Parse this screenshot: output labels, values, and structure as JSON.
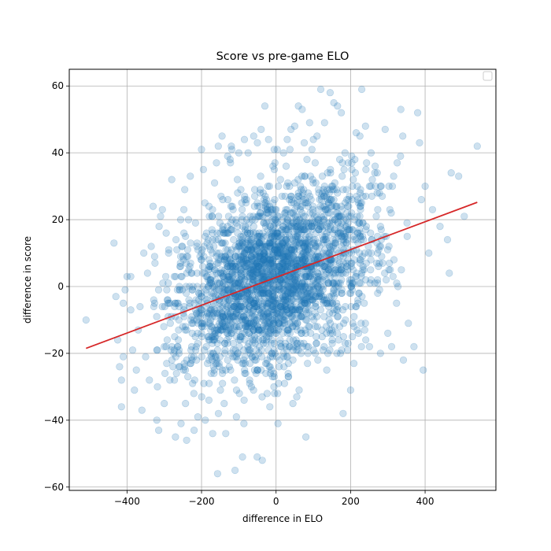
{
  "chart_data": {
    "type": "scatter",
    "title": "Score vs pre-game ELO",
    "xlabel": "difference in ELO",
    "ylabel": "difference in score",
    "xlim": [
      -555,
      590
    ],
    "ylim": [
      -61,
      65
    ],
    "xticks": [
      -400,
      -200,
      0,
      200,
      400
    ],
    "yticks": [
      -60,
      -40,
      -20,
      0,
      20,
      40,
      60
    ],
    "xtick_labels": [
      "−400",
      "−200",
      "0",
      "200",
      "400"
    ],
    "ytick_labels": [
      "−60",
      "−40",
      "−20",
      "0",
      "20",
      "40",
      "60"
    ],
    "grid": true,
    "legend": "upper-right (empty)",
    "colors": {
      "points": "#1f77b4",
      "fit_line": "#d62728"
    },
    "point_opacity": 0.22,
    "fit_line": {
      "x": [
        -510,
        540
      ],
      "y": [
        -18.5,
        25.2
      ]
    },
    "series": [
      {
        "points": [
          [
            -510,
            -10
          ],
          [
            -435,
            13
          ],
          [
            -430,
            -3
          ],
          [
            -425,
            -16
          ],
          [
            -420,
            -24
          ],
          [
            -415,
            -28
          ],
          [
            -415,
            -36
          ],
          [
            -410,
            -21
          ],
          [
            -410,
            -5
          ],
          [
            -405,
            -1
          ],
          [
            -400,
            3
          ],
          [
            -390,
            3
          ],
          [
            -390,
            -7
          ],
          [
            -385,
            -19
          ],
          [
            -380,
            -31
          ],
          [
            -375,
            -25
          ],
          [
            -370,
            -13
          ],
          [
            -365,
            -6
          ],
          [
            -360,
            -37
          ],
          [
            -355,
            10
          ],
          [
            -350,
            -21
          ],
          [
            -345,
            4
          ],
          [
            -340,
            -28
          ],
          [
            -335,
            12
          ],
          [
            -330,
            24
          ],
          [
            -325,
            7
          ],
          [
            -320,
            -40
          ],
          [
            -315,
            -43
          ],
          [
            -310,
            21
          ],
          [
            -305,
            23
          ],
          [
            -300,
            -35
          ],
          [
            -295,
            16
          ],
          [
            -285,
            -28
          ],
          [
            -280,
            32
          ],
          [
            -270,
            -45
          ],
          [
            -255,
            -41
          ],
          [
            -245,
            29
          ],
          [
            -240,
            -46
          ],
          [
            -235,
            20
          ],
          [
            -230,
            33
          ],
          [
            -220,
            -43
          ],
          [
            -210,
            -39
          ],
          [
            -200,
            41
          ],
          [
            -195,
            35
          ],
          [
            -190,
            -40
          ],
          [
            -180,
            24
          ],
          [
            -170,
            -44
          ],
          [
            -165,
            31
          ],
          [
            -160,
            37
          ],
          [
            -155,
            42
          ],
          [
            -145,
            45
          ],
          [
            -135,
            -44
          ],
          [
            -130,
            39
          ],
          [
            -120,
            42
          ],
          [
            -110,
            -55
          ],
          [
            -100,
            40
          ],
          [
            -90,
            -51
          ],
          [
            -85,
            44
          ],
          [
            -75,
            40
          ],
          [
            -60,
            45
          ],
          [
            -50,
            43
          ],
          [
            -40,
            47
          ],
          [
            -30,
            54
          ],
          [
            -20,
            44
          ],
          [
            -5,
            41
          ],
          [
            5,
            -41
          ],
          [
            20,
            40
          ],
          [
            30,
            44
          ],
          [
            40,
            47
          ],
          [
            50,
            48
          ],
          [
            60,
            54
          ],
          [
            70,
            53
          ],
          [
            80,
            -45
          ],
          [
            90,
            49
          ],
          [
            100,
            44
          ],
          [
            110,
            45
          ],
          [
            120,
            59
          ],
          [
            130,
            49
          ],
          [
            145,
            58
          ],
          [
            155,
            55
          ],
          [
            165,
            54
          ],
          [
            175,
            52
          ],
          [
            180,
            -38
          ],
          [
            185,
            40
          ],
          [
            200,
            -31
          ],
          [
            215,
            46
          ],
          [
            230,
            59
          ],
          [
            240,
            48
          ],
          [
            255,
            40
          ],
          [
            265,
            34
          ],
          [
            280,
            -20
          ],
          [
            300,
            -14
          ],
          [
            310,
            -18
          ],
          [
            325,
            37
          ],
          [
            340,
            45
          ],
          [
            355,
            -11
          ],
          [
            370,
            -18
          ],
          [
            380,
            52
          ],
          [
            385,
            43
          ],
          [
            390,
            26
          ],
          [
            395,
            -25
          ],
          [
            400,
            30
          ],
          [
            410,
            10
          ],
          [
            420,
            23
          ],
          [
            440,
            18
          ],
          [
            460,
            14
          ],
          [
            465,
            4
          ],
          [
            470,
            34
          ],
          [
            490,
            33
          ],
          [
            505,
            21
          ],
          [
            540,
            42
          ]
        ],
        "cloud": {
          "count": 2600,
          "x_mean": 0,
          "x_sd": 135,
          "y_intercept": 2.7,
          "y_slope": 0.0416,
          "y_sd": 13,
          "y_step": 1
        }
      }
    ]
  }
}
